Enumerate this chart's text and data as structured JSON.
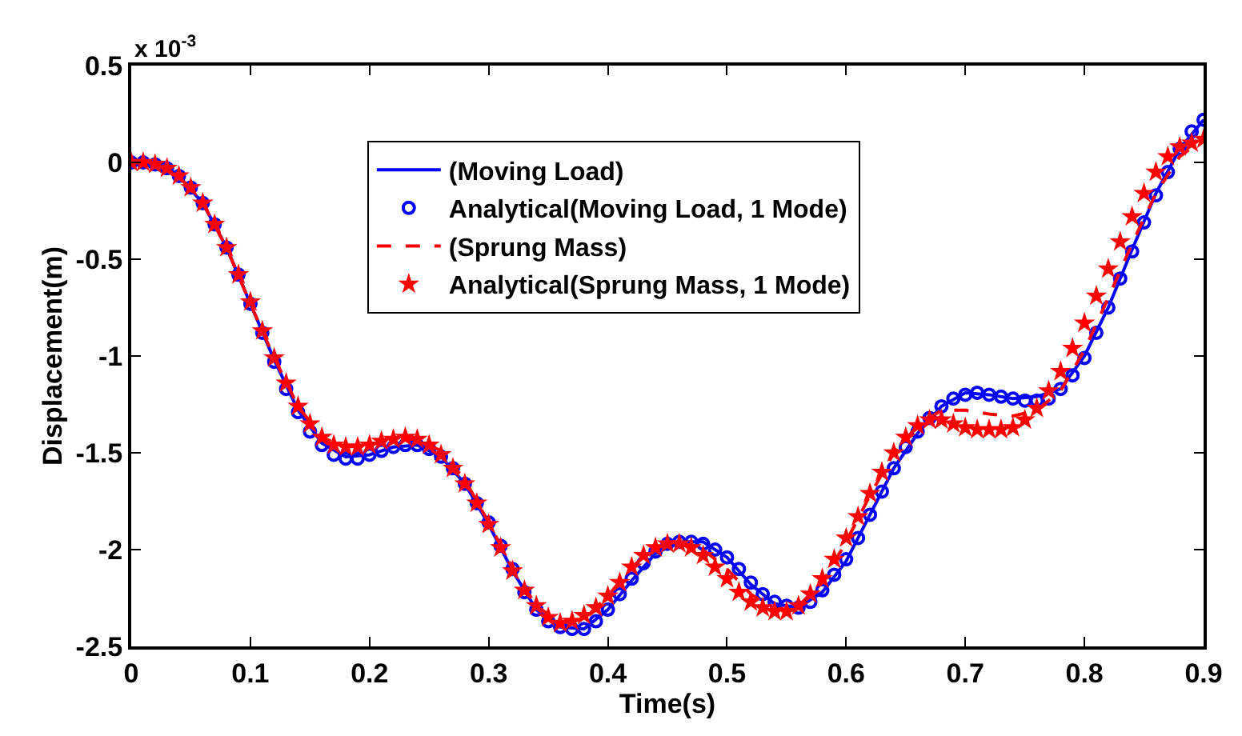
{
  "chart_data": {
    "type": "line",
    "xlabel": "Time(s)",
    "ylabel": "Displacement(m)",
    "annotations": [
      "x 10$^{-3}$"
    ],
    "xlim": [
      0,
      0.9
    ],
    "xticks": [
      0,
      0.1,
      0.2,
      0.3,
      0.4,
      0.5,
      0.6,
      0.7,
      0.8,
      0.9
    ],
    "ylim": [
      -2.5,
      0.5
    ],
    "yticks": [
      0.5,
      0,
      -0.5,
      -1,
      -1.5,
      -2,
      -2.5
    ],
    "legend": "top",
    "series": [
      {
        "name": "(Moving Load)",
        "color": "#0000ff",
        "line_style": "solid",
        "marker": "none",
        "x": [
          0,
          0.02,
          0.04,
          0.06,
          0.08,
          0.1,
          0.12,
          0.14,
          0.16,
          0.18,
          0.2,
          0.22,
          0.24,
          0.26,
          0.28,
          0.3,
          0.32,
          0.34,
          0.36,
          0.38,
          0.4,
          0.42,
          0.44,
          0.46,
          0.48,
          0.5,
          0.52,
          0.54,
          0.56,
          0.58,
          0.6,
          0.62,
          0.64,
          0.66,
          0.68,
          0.7,
          0.72,
          0.74,
          0.76,
          0.78,
          0.8,
          0.82,
          0.84,
          0.86,
          0.88,
          0.9
        ],
        "values": [
          0,
          -0.01,
          -0.07,
          -0.21,
          -0.44,
          -0.73,
          -1.02,
          -1.28,
          -1.45,
          -1.52,
          -1.51,
          -1.47,
          -1.46,
          -1.52,
          -1.66,
          -1.87,
          -2.11,
          -2.31,
          -2.4,
          -2.41,
          -2.31,
          -2.16,
          -2.02,
          -1.96,
          -1.96,
          -2.04,
          -2.18,
          -2.28,
          -2.3,
          -2.22,
          -2.06,
          -1.82,
          -1.58,
          -1.4,
          -1.26,
          -1.19,
          -1.2,
          -1.22,
          -1.21,
          -1.17,
          -1.0,
          -0.75,
          -0.45,
          -0.16,
          0.07,
          0.22
        ]
      },
      {
        "name": "Analytical(Moving Load, 1 Mode)",
        "type": "scatter",
        "color": "#0000ff",
        "marker": "circle",
        "values": [
          0,
          0,
          -0.01,
          -0.03,
          -0.07,
          -0.13,
          -0.21,
          -0.32,
          -0.44,
          -0.58,
          -0.73,
          -0.88,
          -1.03,
          -1.17,
          -1.29,
          -1.39,
          -1.46,
          -1.51,
          -1.53,
          -1.53,
          -1.51,
          -1.49,
          -1.47,
          -1.46,
          -1.46,
          -1.48,
          -1.52,
          -1.58,
          -1.66,
          -1.76,
          -1.86,
          -1.98,
          -2.1,
          -2.22,
          -2.31,
          -2.37,
          -2.4,
          -2.41,
          -2.41,
          -2.37,
          -2.31,
          -2.23,
          -2.15,
          -2.07,
          -2.01,
          -1.97,
          -1.96,
          -1.96,
          -1.97,
          -2.0,
          -2.04,
          -2.1,
          -2.17,
          -2.23,
          -2.27,
          -2.29,
          -2.3,
          -2.27,
          -2.21,
          -2.13,
          -2.05,
          -1.94,
          -1.82,
          -1.7,
          -1.58,
          -1.47,
          -1.39,
          -1.32,
          -1.26,
          -1.22,
          -1.2,
          -1.19,
          -1.2,
          -1.21,
          -1.22,
          -1.23,
          -1.23,
          -1.22,
          -1.17,
          -1.1,
          -1.01,
          -0.88,
          -0.75,
          -0.6,
          -0.46,
          -0.31,
          -0.17,
          -0.05,
          0.07,
          0.16,
          0.22
        ]
      },
      {
        "name": "(Sprung Mass)",
        "color": "#ff0000",
        "line_style": "dashed",
        "marker": "none",
        "x": [
          0,
          0.02,
          0.04,
          0.06,
          0.08,
          0.1,
          0.12,
          0.14,
          0.16,
          0.18,
          0.2,
          0.22,
          0.24,
          0.26,
          0.28,
          0.3,
          0.32,
          0.34,
          0.36,
          0.38,
          0.4,
          0.42,
          0.44,
          0.46,
          0.48,
          0.5,
          0.52,
          0.54,
          0.56,
          0.58,
          0.6,
          0.62,
          0.64,
          0.66,
          0.68,
          0.7,
          0.72,
          0.74,
          0.76,
          0.78,
          0.8,
          0.82,
          0.84,
          0.86,
          0.88,
          0.9
        ],
        "values": [
          0,
          -0.01,
          -0.07,
          -0.21,
          -0.44,
          -0.73,
          -1.01,
          -1.26,
          -1.42,
          -1.47,
          -1.46,
          -1.43,
          -1.43,
          -1.49,
          -1.64,
          -1.86,
          -2.1,
          -2.29,
          -2.38,
          -2.36,
          -2.24,
          -2.09,
          -1.99,
          -1.96,
          -2.0,
          -2.1,
          -2.23,
          -2.31,
          -2.29,
          -2.17,
          -1.96,
          -1.72,
          -1.5,
          -1.36,
          -1.28,
          -1.28,
          -1.3,
          -1.31,
          -1.28,
          -1.18,
          -0.97,
          -0.7,
          -0.42,
          -0.16,
          0.03,
          0.12
        ]
      },
      {
        "name": "Analytical(Sprung Mass, 1 Mode)",
        "type": "scatter",
        "color": "#ff0000",
        "marker": "star",
        "values": [
          0,
          0,
          -0.01,
          -0.03,
          -0.07,
          -0.13,
          -0.21,
          -0.32,
          -0.44,
          -0.58,
          -0.72,
          -0.87,
          -1.01,
          -1.14,
          -1.26,
          -1.35,
          -1.42,
          -1.46,
          -1.47,
          -1.47,
          -1.46,
          -1.44,
          -1.43,
          -1.42,
          -1.43,
          -1.46,
          -1.51,
          -1.58,
          -1.66,
          -1.76,
          -1.87,
          -1.99,
          -2.11,
          -2.21,
          -2.29,
          -2.35,
          -2.38,
          -2.37,
          -2.34,
          -2.3,
          -2.24,
          -2.17,
          -2.09,
          -2.03,
          -1.99,
          -1.97,
          -1.97,
          -1.99,
          -2.03,
          -2.09,
          -2.15,
          -2.22,
          -2.27,
          -2.3,
          -2.32,
          -2.32,
          -2.29,
          -2.23,
          -2.15,
          -2.05,
          -1.94,
          -1.83,
          -1.71,
          -1.6,
          -1.5,
          -1.42,
          -1.36,
          -1.33,
          -1.33,
          -1.35,
          -1.37,
          -1.38,
          -1.38,
          -1.38,
          -1.37,
          -1.33,
          -1.27,
          -1.18,
          -1.08,
          -0.96,
          -0.83,
          -0.69,
          -0.55,
          -0.41,
          -0.28,
          -0.16,
          -0.05,
          0.03,
          0.08,
          0.1,
          0.12
        ]
      }
    ],
    "x": [
      0,
      0.01,
      0.02,
      0.03,
      0.04,
      0.05,
      0.06,
      0.07,
      0.08,
      0.09,
      0.1,
      0.11,
      0.12,
      0.13,
      0.14,
      0.15,
      0.16,
      0.17,
      0.18,
      0.19,
      0.2,
      0.21,
      0.22,
      0.23,
      0.24,
      0.25,
      0.26,
      0.27,
      0.28,
      0.29,
      0.3,
      0.31,
      0.32,
      0.33,
      0.34,
      0.35,
      0.36,
      0.37,
      0.38,
      0.39,
      0.4,
      0.41,
      0.42,
      0.43,
      0.44,
      0.45,
      0.46,
      0.47,
      0.48,
      0.49,
      0.5,
      0.51,
      0.52,
      0.53,
      0.54,
      0.55,
      0.56,
      0.57,
      0.58,
      0.59,
      0.6,
      0.61,
      0.62,
      0.63,
      0.64,
      0.65,
      0.66,
      0.67,
      0.68,
      0.69,
      0.7,
      0.71,
      0.72,
      0.73,
      0.74,
      0.75,
      0.76,
      0.77,
      0.78,
      0.79,
      0.8,
      0.81,
      0.82,
      0.83,
      0.84,
      0.85,
      0.86,
      0.87,
      0.88,
      0.89,
      0.9
    ]
  }
}
